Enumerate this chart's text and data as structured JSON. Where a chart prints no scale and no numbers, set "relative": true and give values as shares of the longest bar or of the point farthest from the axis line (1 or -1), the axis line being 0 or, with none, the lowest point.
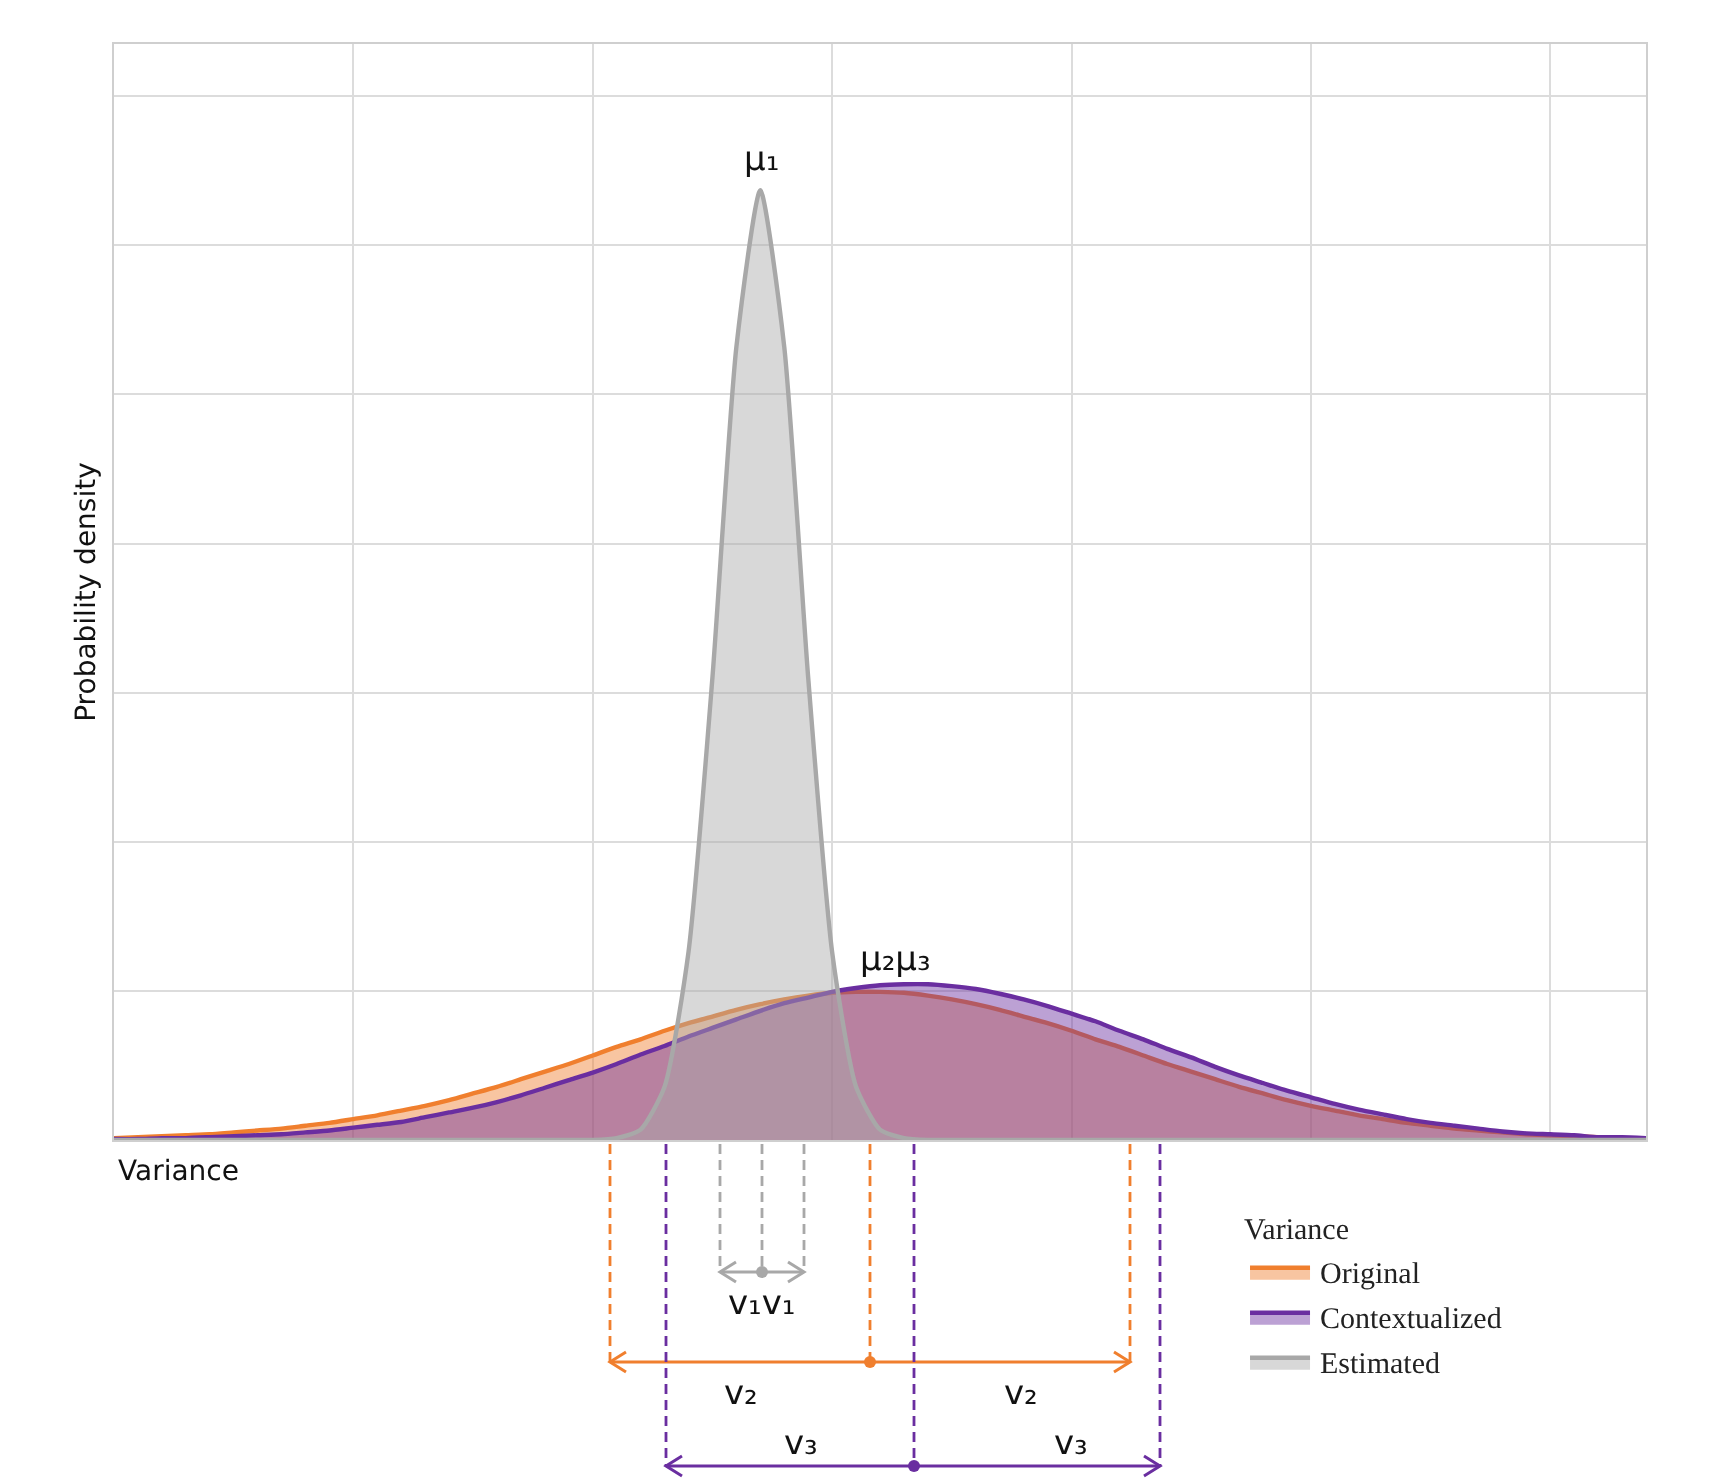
{
  "chart_data": {
    "type": "area",
    "relative": true,
    "xlabel": "Variance",
    "ylabel": "Probability density",
    "legend_title": "Variance",
    "legend": "bottom right",
    "grid": true,
    "tick_labels": false,
    "marker": "none",
    "categories": [
      null,
      null,
      null,
      null,
      null,
      null,
      null,
      null,
      null,
      null,
      null,
      null,
      null,
      null,
      null,
      null,
      null,
      null,
      null,
      null,
      null,
      null,
      null,
      null,
      null,
      null,
      null,
      null,
      null,
      null,
      null,
      null,
      null,
      null,
      null,
      null,
      null,
      null,
      null,
      null,
      null,
      null,
      null,
      null,
      null,
      null,
      null,
      null,
      null,
      null,
      null,
      null,
      null,
      null,
      null,
      null,
      null,
      null,
      null,
      null,
      null,
      null,
      null,
      null,
      null
    ],
    "series": [
      {
        "name": "Original",
        "color": "#f07f2e",
        "values": [
          0.002,
          0.003,
          0.004,
          0.005,
          0.006,
          0.008,
          0.01,
          0.012,
          0.015,
          0.018,
          0.022,
          0.026,
          0.031,
          0.036,
          0.042,
          0.049,
          0.056,
          0.064,
          0.072,
          0.08,
          0.089,
          0.098,
          0.106,
          0.115,
          0.123,
          0.13,
          0.137,
          0.143,
          0.148,
          0.152,
          0.155,
          0.156,
          0.156,
          0.155,
          0.152,
          0.148,
          0.143,
          0.137,
          0.13,
          0.123,
          0.115,
          0.106,
          0.098,
          0.089,
          0.08,
          0.072,
          0.064,
          0.056,
          0.049,
          0.042,
          0.036,
          0.031,
          0.026,
          0.022,
          0.018,
          0.015,
          0.012,
          0.01,
          0.008,
          0.006,
          0.005,
          0.004,
          0.003,
          0.002,
          0.002
        ]
      },
      {
        "name": "Contextualized",
        "color": "#6a2ea0",
        "values": [
          0.001,
          0.001,
          0.002,
          0.002,
          0.003,
          0.004,
          0.005,
          0.006,
          0.008,
          0.01,
          0.013,
          0.016,
          0.019,
          0.024,
          0.029,
          0.034,
          0.04,
          0.047,
          0.055,
          0.063,
          0.071,
          0.08,
          0.09,
          0.099,
          0.109,
          0.118,
          0.127,
          0.136,
          0.144,
          0.15,
          0.156,
          0.16,
          0.163,
          0.164,
          0.164,
          0.162,
          0.159,
          0.154,
          0.148,
          0.141,
          0.133,
          0.125,
          0.115,
          0.106,
          0.096,
          0.087,
          0.077,
          0.068,
          0.06,
          0.052,
          0.045,
          0.038,
          0.032,
          0.027,
          0.022,
          0.018,
          0.015,
          0.012,
          0.009,
          0.007,
          0.006,
          0.005,
          0.003,
          0.003,
          0.002
        ]
      },
      {
        "name": "Estimated",
        "color": "#a8a8a8",
        "values": [
          0,
          0,
          0,
          0,
          0,
          0,
          0,
          0,
          0,
          0,
          0,
          0,
          0,
          0,
          0,
          0,
          0,
          0,
          0,
          0,
          0,
          0.002,
          0.011,
          0.056,
          0.198,
          0.487,
          0.835,
          1,
          0.835,
          0.487,
          0.198,
          0.056,
          0.011,
          0.002,
          0,
          0,
          0,
          0,
          0,
          0,
          0,
          0,
          0,
          0,
          0,
          0,
          0,
          0,
          0,
          0,
          0,
          0,
          0,
          0,
          0,
          0,
          0,
          0,
          0,
          0,
          0,
          0,
          0,
          0,
          0
        ]
      }
    ],
    "annotations": [
      "μ₁",
      "μ₂μ₃",
      "v₁v₁",
      "v₂",
      "v₂",
      "v₃",
      "v₃"
    ]
  }
}
